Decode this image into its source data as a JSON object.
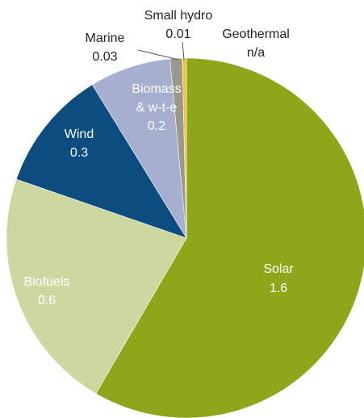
{
  "chart_data": {
    "type": "pie",
    "title": "",
    "slices": [
      {
        "label": "Solar",
        "value_text": "1.6",
        "value": 1.6,
        "color": "#8ea61a"
      },
      {
        "label": "Biofuels",
        "value_text": "0.6",
        "value": 0.6,
        "color": "#cdd8a0"
      },
      {
        "label": "Wind",
        "value_text": "0.3",
        "value": 0.3,
        "color": "#0d4c7e"
      },
      {
        "label_line1": "Biomass",
        "label_line2": "& w-t-e",
        "value_text": "0.2",
        "value": 0.2,
        "color": "#a7afd0"
      },
      {
        "label": "Marine",
        "value_text": "0.03",
        "value": 0.03,
        "color": "#9a9a8c"
      },
      {
        "label": "Small hydro",
        "value_text": "0.01",
        "value": 0.01,
        "color": "#f2c13a"
      },
      {
        "label": "Geothermal",
        "value_text": "n/a",
        "value": 0,
        "color": "#ffffff"
      }
    ]
  }
}
